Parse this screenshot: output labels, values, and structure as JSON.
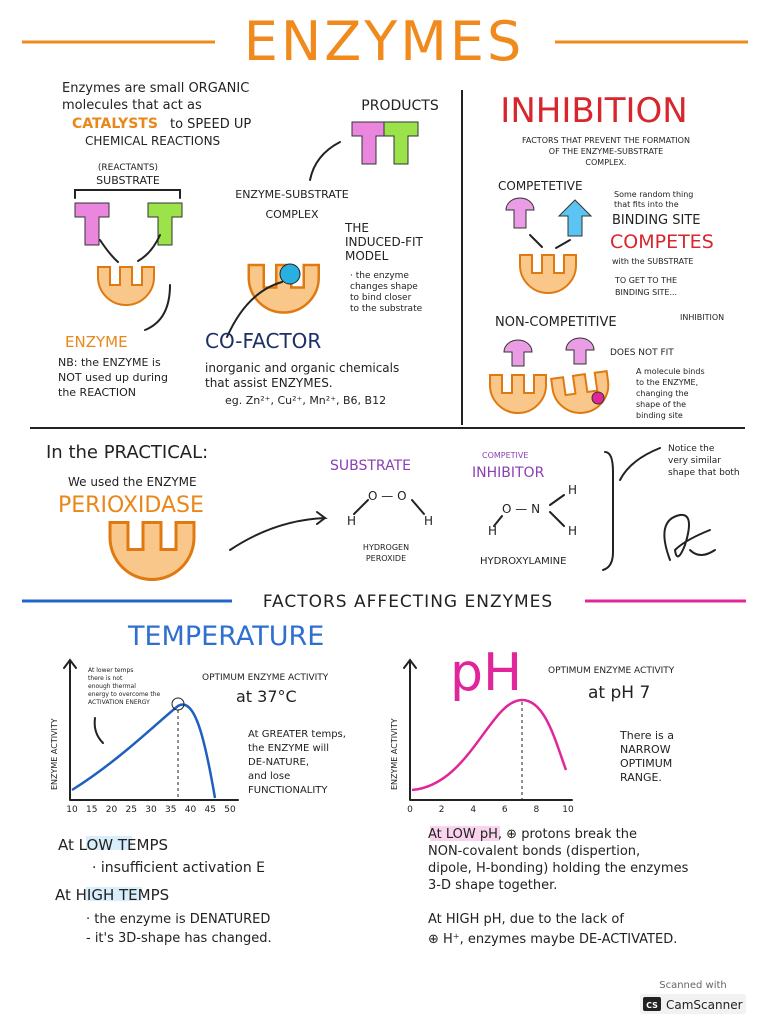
{
  "title": "ENZYMES",
  "intro": {
    "lines": [
      "Enzymes are small ORGANIC",
      "molecules that act as"
    ],
    "catalysts": "CATALYSTS",
    "speed": "to SPEED UP",
    "last": "CHEMICAL REACTIONS"
  },
  "reaction": {
    "reactants": "(REACTANTS)",
    "substrate": "SUBSTRATE",
    "enzyme": "ENZYME",
    "nb": [
      "NB: the ENZYME is",
      "NOT used up during",
      "the REACTION"
    ],
    "products": "PRODUCTS",
    "complex": [
      "ENZYME-SUBSTRATE",
      "COMPLEX"
    ]
  },
  "induced_fit": {
    "title": [
      "THE",
      "INDUCED-FIT",
      "MODEL"
    ],
    "text": [
      "· the enzyme",
      "changes shape",
      "to bind closer",
      "to the substrate"
    ]
  },
  "cofactor": {
    "title": "CO-FACTOR",
    "text": [
      "inorganic and organic chemicals",
      "that assist ENZYMES."
    ],
    "examples": "eg. Zn²⁺, Cu²⁺, Mn²⁺, B6, B12"
  },
  "inhibition": {
    "title": "INHIBITION",
    "subtitle": [
      "FACTORS THAT PREVENT THE FORMATION",
      "OF THE ENZYME-SUBSTRATE",
      "COMPLEX."
    ],
    "competitive": {
      "title": "COMPETETIVE",
      "note": [
        "Some random thing",
        "that fits into the"
      ],
      "binding_site": "BINDING SITE",
      "competes": "COMPETES",
      "with": "with the SUBSTRATE",
      "to_get": [
        "TO GET TO THE",
        "BINDING SITE..."
      ]
    },
    "non_competitive": {
      "title": "NON-COMPETITIVE",
      "tag": "INHIBITION",
      "does_not_fit": "DOES NOT FIT",
      "note": [
        "A molecule binds",
        "to the ENZYME,",
        "changing the",
        "shape of the",
        "binding site"
      ]
    }
  },
  "practical": {
    "title": "In the PRACTICAL:",
    "used": "We used the ENZYME",
    "enzyme": "PERIOXIDASE",
    "substrate": "SUBSTRATE",
    "substrate_atoms": [
      "O — O",
      "H",
      "H"
    ],
    "substrate_name": [
      "HYDROGEN",
      "PEROXIDE"
    ],
    "inhibitor_tag": "COMPETIVE",
    "inhibitor": "INHIBITOR",
    "inhibitor_atoms": [
      "H",
      "O — N",
      "H",
      "H"
    ],
    "inhibitor_name": "HYDROXYLAMINE",
    "note": [
      "Notice the",
      "very similar",
      "shape that both"
    ]
  },
  "factors": {
    "title": "FACTORS AFFECTING ENZYMES",
    "temperature": {
      "title": "TEMPERATURE",
      "y_label": "ENZYME ACTIVITY",
      "ticks": [
        10,
        15,
        20,
        25,
        30,
        35,
        40,
        45,
        50
      ],
      "low_note": [
        "At lower temps",
        "there is not",
        "enough thermal",
        "energy to overcome the",
        "ACTIVATION ENERGY"
      ],
      "optimum": "OPTIMUM ENZYME ACTIVITY",
      "optimum_value": "at 37°C",
      "high_note": [
        "At GREATER temps,",
        "the ENZYME will",
        "DE-NATURE,",
        "and lose",
        "FUNCTIONALITY"
      ]
    },
    "ph": {
      "title": "pH",
      "y_label": "ENZYME ACTIVITY",
      "ticks": [
        0,
        2,
        4,
        6,
        8,
        10
      ],
      "optimum": "OPTIMUM ENZYME ACTIVITY",
      "optimum_value": "at pH 7",
      "note": [
        "There is a",
        "NARROW",
        "OPTIMUM",
        "RANGE."
      ]
    }
  },
  "summary": {
    "low_temps": "At LOW TEMPS",
    "low_text": "· insufficient activation E",
    "high_temps": "At HIGH TEMPS",
    "high_text": [
      "· the enzyme is DENATURED",
      "- it's 3D-shape has changed."
    ],
    "low_ph": [
      "At LOW pH, ⊕ protons break the",
      "NON-covalent bonds (dispertion,",
      "dipole, H-bonding) holding the enzymes",
      "3-D shape together."
    ],
    "high_ph": [
      "At HIGH pH, due to the lack of",
      "⊕ H⁺, enzymes maybe DE-ACTIVATED."
    ]
  },
  "scanner": {
    "line1": "Scanned with",
    "logo": "CS",
    "line2": "CamScanner"
  }
}
